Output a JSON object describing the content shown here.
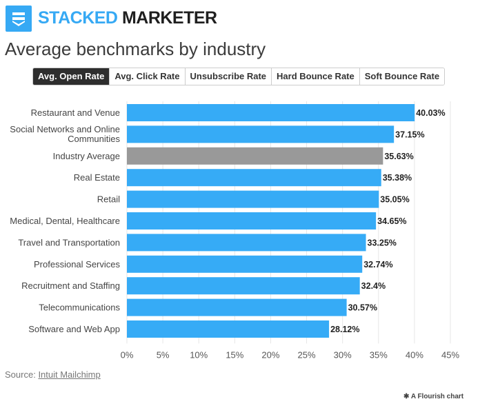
{
  "header": {
    "brand_part1": "STACKED",
    "brand_part2": "MARKETER",
    "title": "Average benchmarks by industry"
  },
  "tabs": [
    {
      "label": "Avg. Open Rate",
      "active": true
    },
    {
      "label": "Avg. Click Rate",
      "active": false
    },
    {
      "label": "Unsubscribe Rate",
      "active": false
    },
    {
      "label": "Hard Bounce Rate",
      "active": false
    },
    {
      "label": "Soft Bounce Rate",
      "active": false
    }
  ],
  "chart_data": {
    "type": "bar",
    "orientation": "horizontal",
    "categories": [
      "Restaurant and Venue",
      "Social Networks and Online Communities",
      "Industry Average",
      "Real Estate",
      "Retail",
      "Medical, Dental, Healthcare",
      "Travel and Transportation",
      "Professional Services",
      "Recruitment and Staffing",
      "Telecommunications",
      "Software and Web App"
    ],
    "values": [
      40.03,
      37.15,
      35.63,
      35.38,
      35.05,
      34.65,
      33.25,
      32.74,
      32.4,
      30.57,
      28.12
    ],
    "value_labels": [
      "40.03%",
      "37.15%",
      "35.63%",
      "35.38%",
      "35.05%",
      "34.65%",
      "33.25%",
      "32.74%",
      "32.4%",
      "30.57%",
      "28.12%"
    ],
    "highlight_category": "Industry Average",
    "colors": {
      "bar": "#36abf6",
      "highlight": "#999999",
      "grid": "#e6e6e6"
    },
    "xlim": [
      0,
      45
    ],
    "xticks": [
      0,
      5,
      10,
      15,
      20,
      25,
      30,
      35,
      40,
      45
    ],
    "xtick_labels": [
      "0%",
      "5%",
      "10%",
      "15%",
      "20%",
      "25%",
      "30%",
      "35%",
      "40%",
      "45%"
    ],
    "grid": true
  },
  "footer": {
    "source_prefix": "Source:",
    "source_link": "Intuit Mailchimp",
    "flourish": "A Flourish chart"
  },
  "icons": {
    "logo": "stack-icon",
    "flourish": "flourish-asterisk-icon"
  }
}
